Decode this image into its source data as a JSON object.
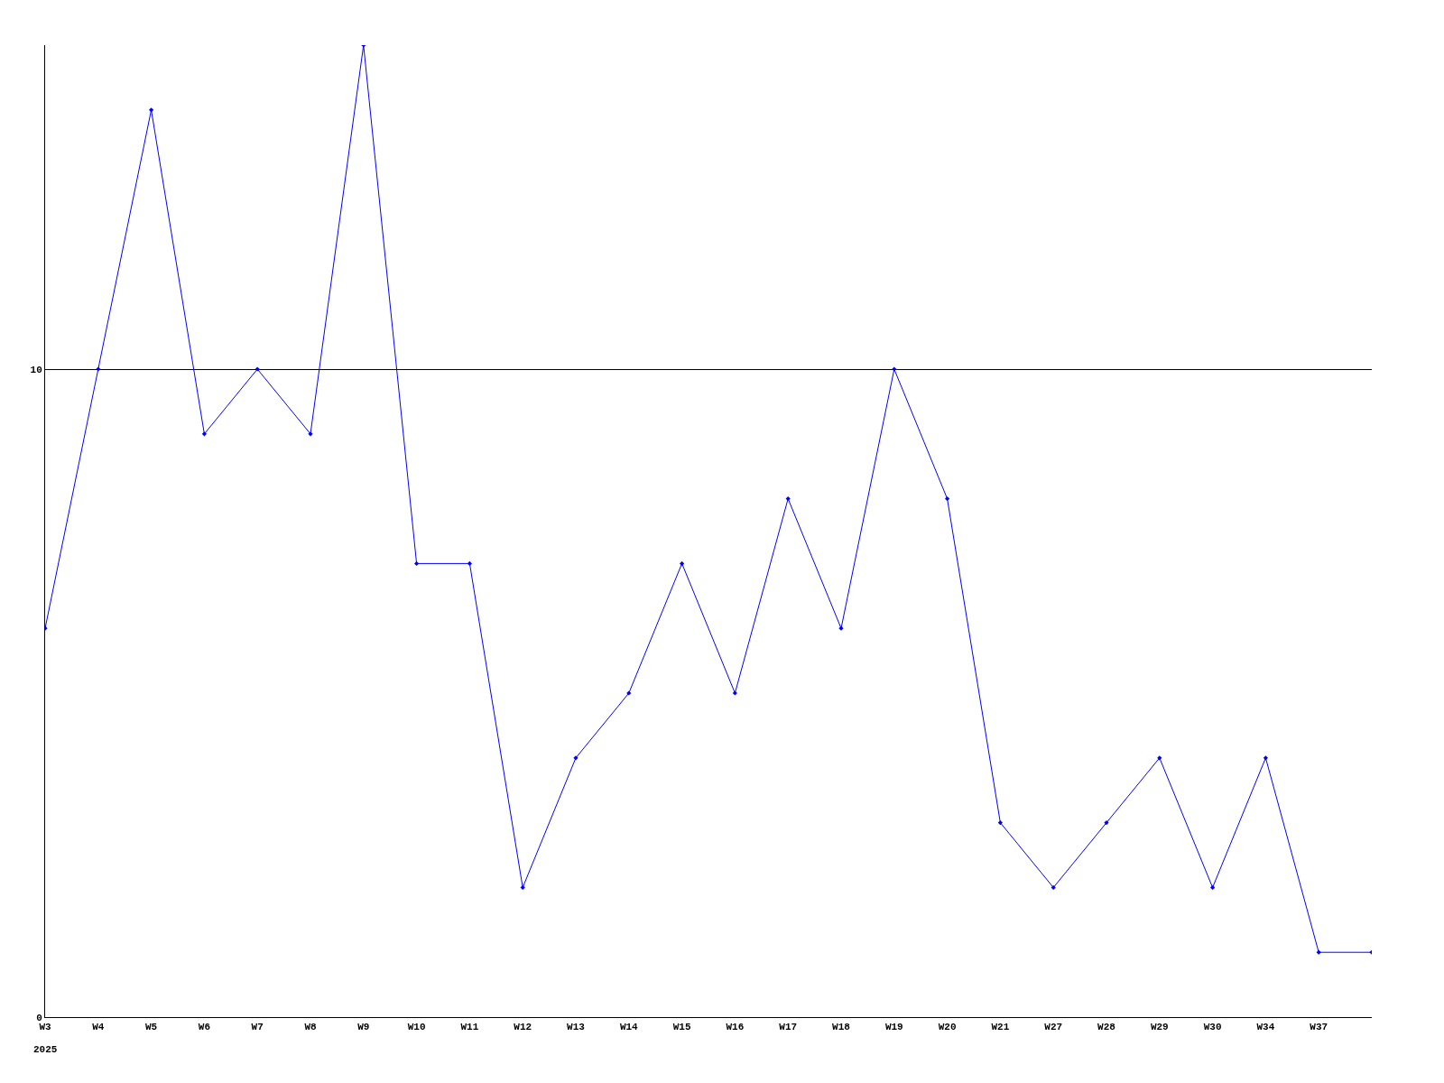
{
  "chart_data": {
    "type": "line",
    "categories": [
      "W3",
      "W4",
      "W5",
      "W6",
      "W7",
      "W8",
      "W9",
      "W10",
      "W11",
      "W12",
      "W13",
      "W14",
      "W15",
      "W16",
      "W17",
      "W18",
      "W19",
      "W20",
      "W21",
      "W27",
      "W28",
      "W29",
      "W30",
      "W34",
      "W37",
      null
    ],
    "series": [
      {
        "color": "#0000ff",
        "values": [
          6,
          10,
          14,
          9,
          10,
          9,
          15,
          7,
          7,
          2,
          4,
          5,
          7,
          5,
          8,
          6,
          10,
          8,
          3,
          2,
          3,
          4,
          2,
          4,
          1,
          1
        ]
      }
    ],
    "ylim": [
      0,
      15
    ],
    "yticks": [
      0,
      10
    ],
    "grid": "y",
    "marker": "diamond",
    "line_style": "solid",
    "annotations": [
      "2025"
    ]
  }
}
